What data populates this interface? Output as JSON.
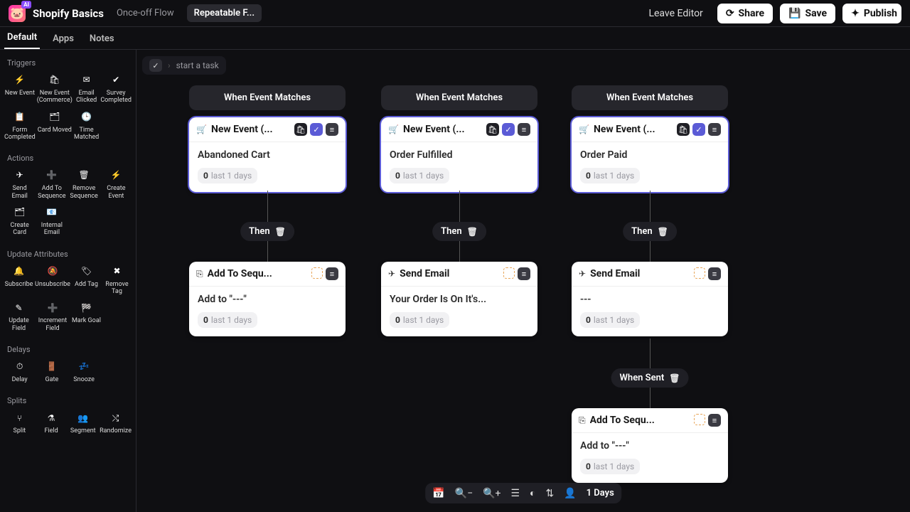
{
  "topbar": {
    "project": "Shopify Basics",
    "tabs": [
      {
        "label": "Once-off Flow",
        "active": false
      },
      {
        "label": "Repeatable F...",
        "active": true
      }
    ],
    "leave": "Leave Editor",
    "share": "Share",
    "save": "Save",
    "publish": "Publish"
  },
  "second_tabs": [
    "Default",
    "Apps",
    "Notes"
  ],
  "second_active": 0,
  "task_placeholder": "start a task",
  "sidebar": {
    "sections": [
      {
        "title": "Triggers",
        "items": [
          {
            "icon": "⚡",
            "label": "New Event"
          },
          {
            "icon": "🛍",
            "label": "New Event (Commerce)"
          },
          {
            "icon": "✉",
            "label": "Email Clicked"
          },
          {
            "icon": "✔",
            "label": "Survey Completed"
          },
          {
            "icon": "📋",
            "label": "Form Completed"
          },
          {
            "icon": "🗂",
            "label": "Card Moved"
          },
          {
            "icon": "🕒",
            "label": "Time Matched"
          }
        ]
      },
      {
        "title": "Actions",
        "items": [
          {
            "icon": "✈",
            "label": "Send Email"
          },
          {
            "icon": "➕",
            "label": "Add To Sequence"
          },
          {
            "icon": "🗑",
            "label": "Remove Sequence"
          },
          {
            "icon": "⚡",
            "label": "Create Event"
          },
          {
            "icon": "🗂",
            "label": "Create Card"
          },
          {
            "icon": "📧",
            "label": "Internal Email"
          }
        ]
      },
      {
        "title": "Update Attributes",
        "items": [
          {
            "icon": "🔔",
            "label": "Subscribe"
          },
          {
            "icon": "🔕",
            "label": "Unsubscribe"
          },
          {
            "icon": "🏷",
            "label": "Add Tag"
          },
          {
            "icon": "✖",
            "label": "Remove Tag"
          },
          {
            "icon": "✎",
            "label": "Update Field"
          },
          {
            "icon": "➕",
            "label": "Increment Field"
          },
          {
            "icon": "🏁",
            "label": "Mark Goal"
          }
        ]
      },
      {
        "title": "Delays",
        "items": [
          {
            "icon": "⏱",
            "label": "Delay"
          },
          {
            "icon": "🚪",
            "label": "Gate"
          },
          {
            "icon": "💤",
            "label": "Snooze"
          }
        ]
      },
      {
        "title": "Splits",
        "items": [
          {
            "icon": "⑂",
            "label": "Split"
          },
          {
            "icon": "⚗",
            "label": "Field"
          },
          {
            "icon": "👥",
            "label": "Segment"
          },
          {
            "icon": "⤭",
            "label": "Randomize"
          }
        ]
      }
    ]
  },
  "flows": {
    "trigger_label": "When Event Matches",
    "then_label": "Then",
    "when_sent_label": "When Sent",
    "stats_suffix": "last 1 days",
    "columns": [
      {
        "selected": true,
        "trigger_title": "New Event (...",
        "trigger_subtitle": "Abandoned Cart",
        "trigger_stats": "0",
        "trigger_icons": [
          "shop",
          "check",
          "menu"
        ],
        "action_kind": "sequence",
        "action_title": "Add To Sequ...",
        "action_subtitle": "Add to \"---\"",
        "action_stats": "0"
      },
      {
        "selected": true,
        "trigger_title": "New Event (...",
        "trigger_subtitle": "Order Fulfilled",
        "trigger_stats": "0",
        "trigger_icons": [
          "shop",
          "check",
          "menu"
        ],
        "action_kind": "email",
        "action_title": "Send Email",
        "action_subtitle": "Your Order Is On It's...",
        "action_stats": "0"
      },
      {
        "selected": true,
        "trigger_title": "New Event (...",
        "trigger_subtitle": "Order Paid",
        "trigger_stats": "0",
        "trigger_icons": [
          "shop",
          "check",
          "menu"
        ],
        "action_kind": "email",
        "action_title": "Send Email",
        "action_subtitle": "---",
        "action_stats": "0",
        "extra": {
          "label": "When Sent",
          "card_title": "Add To Sequ...",
          "card_subtitle": "Add to \"---\"",
          "card_stats": "0"
        }
      }
    ]
  },
  "bottom": {
    "icons": [
      "📅",
      "🔍−",
      "🔍+",
      "☰",
      "◐",
      "⇅",
      "👤"
    ],
    "label": "1 Days"
  }
}
